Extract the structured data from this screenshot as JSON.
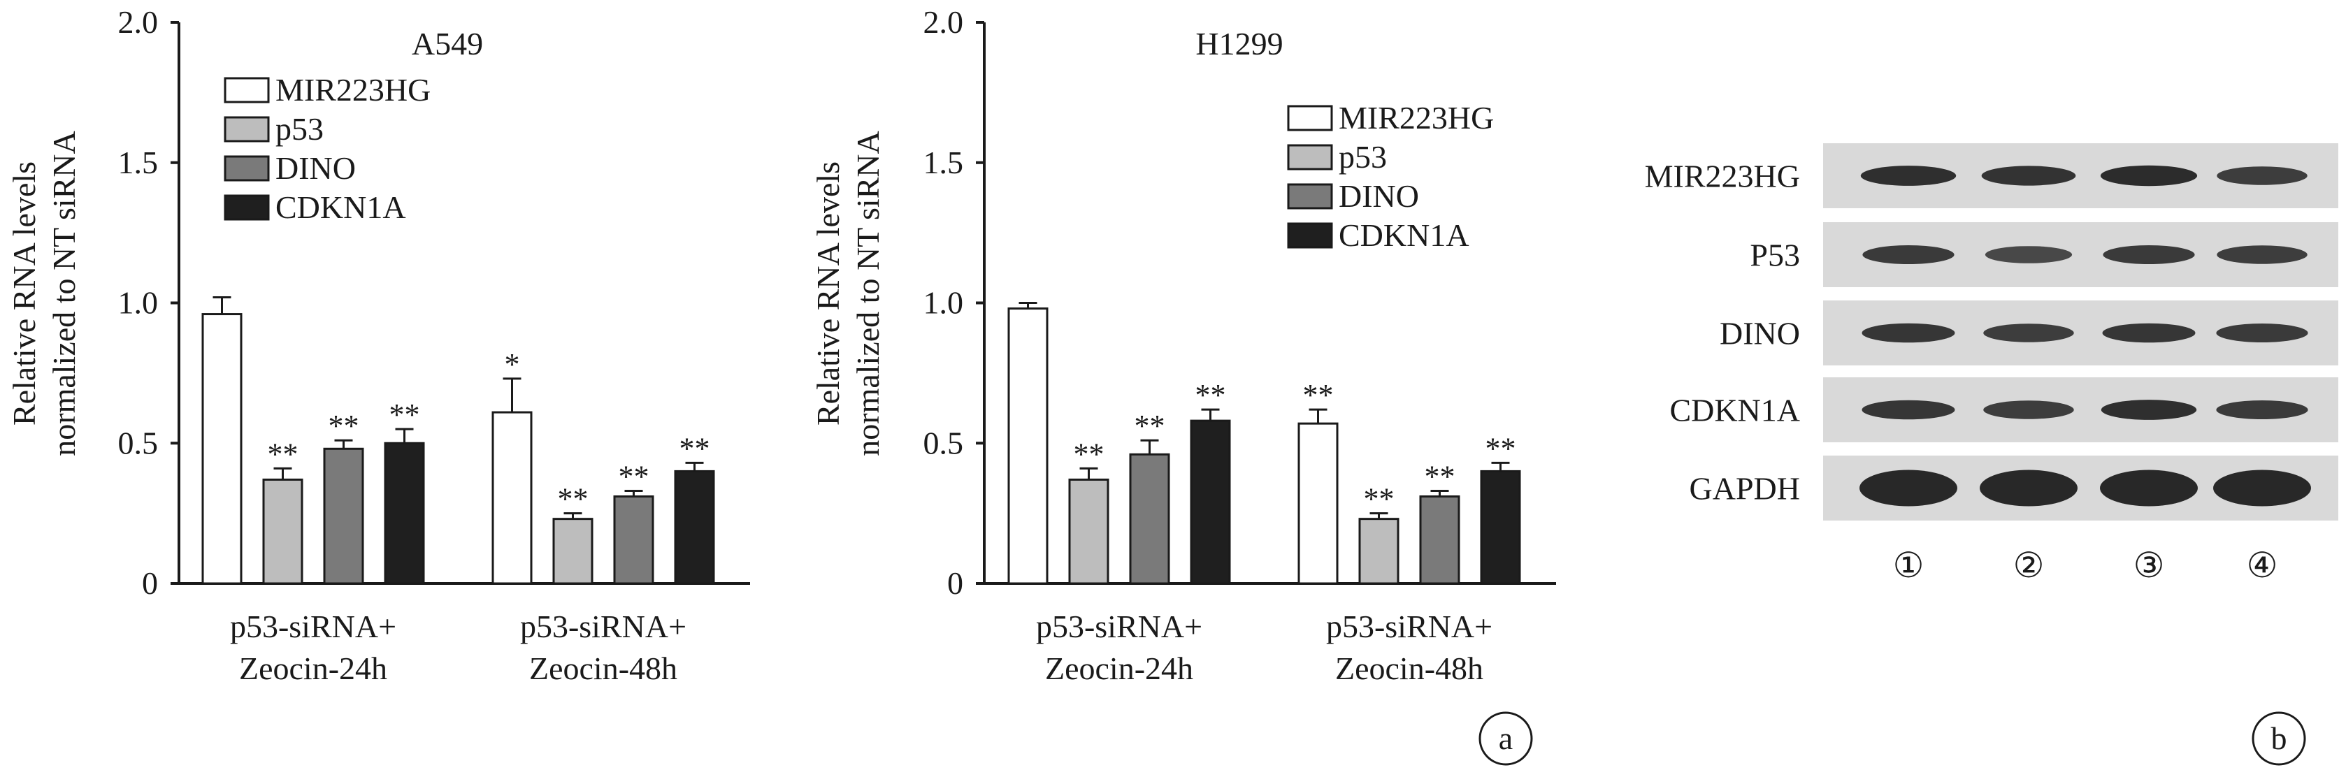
{
  "chart_data": [
    {
      "type": "bar",
      "title": "A549",
      "ylabel": [
        "Relative RNA levels",
        "normalized to NT siRNA"
      ],
      "ylim": [
        0,
        2.0
      ],
      "yticks": [
        "0",
        "0.5",
        "1.0",
        "1.5",
        "2.0"
      ],
      "categories": [
        [
          "p53-siRNA+",
          "Zeocin-24h"
        ],
        [
          "p53-siRNA+",
          "Zeocin-48h"
        ]
      ],
      "legend_position": "top-left",
      "series": [
        {
          "name": "MIR223HG",
          "color": "#ffffff",
          "values": [
            0.96,
            0.61
          ],
          "errors": [
            0.06,
            0.12
          ],
          "sig": [
            "",
            "*"
          ]
        },
        {
          "name": "p53",
          "color": "#bdbdbd",
          "values": [
            0.37,
            0.23
          ],
          "errors": [
            0.04,
            0.02
          ],
          "sig": [
            "**",
            "**"
          ]
        },
        {
          "name": "DINO",
          "color": "#7a7a7a",
          "values": [
            0.48,
            0.31
          ],
          "errors": [
            0.03,
            0.02
          ],
          "sig": [
            "**",
            "**"
          ]
        },
        {
          "name": "CDKN1A",
          "color": "#1f1f1f",
          "values": [
            0.5,
            0.4
          ],
          "errors": [
            0.05,
            0.03
          ],
          "sig": [
            "**",
            "**"
          ]
        }
      ]
    },
    {
      "type": "bar",
      "title": "H1299",
      "ylabel": [
        "Relative RNA levels",
        "normalized to NT siRNA"
      ],
      "ylim": [
        0,
        2.0
      ],
      "yticks": [
        "0",
        "0.5",
        "1.0",
        "1.5",
        "2.0"
      ],
      "categories": [
        [
          "p53-siRNA+",
          "Zeocin-24h"
        ],
        [
          "p53-siRNA+",
          "Zeocin-48h"
        ]
      ],
      "legend_position": "top-right",
      "series": [
        {
          "name": "MIR223HG",
          "color": "#ffffff",
          "values": [
            0.98,
            0.57
          ],
          "errors": [
            0.02,
            0.05
          ],
          "sig": [
            "",
            "**"
          ]
        },
        {
          "name": "p53",
          "color": "#bdbdbd",
          "values": [
            0.37,
            0.23
          ],
          "errors": [
            0.04,
            0.02
          ],
          "sig": [
            "**",
            "**"
          ]
        },
        {
          "name": "DINO",
          "color": "#7a7a7a",
          "values": [
            0.46,
            0.31
          ],
          "errors": [
            0.05,
            0.02
          ],
          "sig": [
            "**",
            "**"
          ]
        },
        {
          "name": "CDKN1A",
          "color": "#1f1f1f",
          "values": [
            0.58,
            0.4
          ],
          "errors": [
            0.04,
            0.03
          ],
          "sig": [
            "**",
            "**"
          ]
        }
      ]
    }
  ],
  "panel_a_label": "a",
  "panel_b_label": "b",
  "western_blot": {
    "proteins": [
      "MIR223HG",
      "P53",
      "DINO",
      "CDKN1A",
      "GAPDH"
    ],
    "lanes": [
      "①",
      "②",
      "③",
      "④"
    ],
    "band_intensity": [
      [
        0.9,
        0.85,
        0.95,
        0.7
      ],
      [
        0.75,
        0.55,
        0.75,
        0.7
      ],
      [
        0.8,
        0.7,
        0.8,
        0.75
      ],
      [
        0.8,
        0.7,
        0.9,
        0.75
      ],
      [
        1.0,
        1.0,
        1.0,
        1.0
      ]
    ]
  }
}
